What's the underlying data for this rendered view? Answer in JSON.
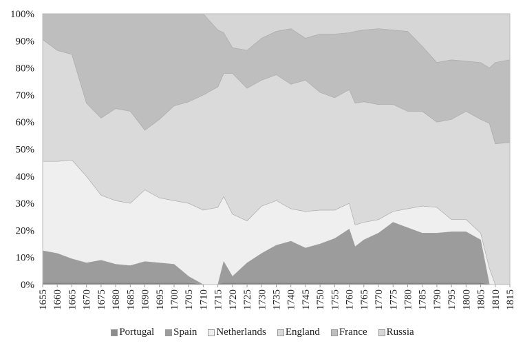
{
  "chart_data": {
    "type": "area",
    "stacked": true,
    "percent": true,
    "title": "",
    "xlabel": "",
    "ylabel": "",
    "ylim": [
      0,
      100
    ],
    "xlim": [
      1655,
      1815
    ],
    "y_ticks": [
      "0%",
      "10%",
      "20%",
      "30%",
      "40%",
      "50%",
      "60%",
      "70%",
      "80%",
      "90%",
      "100%"
    ],
    "x_ticks": [
      "1655",
      "1660",
      "1665",
      "1670",
      "1675",
      "1680",
      "1685",
      "1690",
      "1695",
      "1700",
      "1705",
      "1710",
      "1715",
      "1720",
      "1725",
      "1730",
      "1735",
      "1740",
      "1745",
      "1750",
      "1755",
      "1760",
      "1765",
      "1770",
      "1775",
      "1780",
      "1785",
      "1790",
      "1795",
      "1800",
      "1805",
      "1810",
      "1815"
    ],
    "grid": false,
    "legend_position": "bottom",
    "x": [
      1655,
      1660,
      1665,
      1670,
      1675,
      1680,
      1685,
      1690,
      1695,
      1700,
      1705,
      1710,
      1715,
      1717,
      1720,
      1725,
      1730,
      1735,
      1740,
      1745,
      1750,
      1755,
      1760,
      1762,
      1765,
      1770,
      1775,
      1780,
      1785,
      1790,
      1795,
      1800,
      1805,
      1808,
      1810,
      1815
    ],
    "series": [
      {
        "name": "Portugal",
        "color": "#8c8c8c",
        "values": [
          0.5,
          0.5,
          0.5,
          0.5,
          0.5,
          0.5,
          0.5,
          0.5,
          0.5,
          0.5,
          0.5,
          0,
          0,
          0.5,
          0.5,
          0.5,
          0.5,
          0.5,
          0.5,
          0.5,
          0.5,
          0.5,
          0.5,
          0.5,
          0.5,
          0.5,
          0.5,
          0.5,
          0.5,
          0.5,
          0.5,
          0.5,
          0.5,
          0,
          0,
          0
        ]
      },
      {
        "name": "Spain",
        "color": "#9c9c9c",
        "values": [
          12,
          11,
          9,
          7.5,
          8.5,
          7,
          6.5,
          8,
          7.5,
          7,
          2.5,
          0,
          0,
          8,
          2.5,
          7.5,
          11,
          14,
          15.5,
          13,
          14.5,
          16.5,
          20,
          13.5,
          16,
          18.5,
          22.5,
          20.5,
          18.5,
          18.5,
          19,
          19,
          16,
          0,
          0,
          0
        ]
      },
      {
        "name": "Netherlands",
        "color": "#efefef",
        "values": [
          33,
          34,
          36.5,
          32,
          24,
          23.5,
          23,
          26.5,
          24,
          23.5,
          27,
          27.5,
          28.5,
          24,
          23,
          15.5,
          17.5,
          16.5,
          12,
          13.5,
          12.5,
          10.5,
          9.5,
          8,
          6.5,
          5,
          4,
          7,
          10,
          9.5,
          4.5,
          4.5,
          2.5,
          6,
          0,
          0
        ]
      },
      {
        "name": "England",
        "color": "#dadada",
        "values": [
          45,
          41,
          39,
          27,
          28.5,
          34,
          34,
          22,
          29,
          35,
          37.5,
          42.5,
          44.5,
          45.5,
          52,
          49,
          46.5,
          46.5,
          46,
          48.5,
          43.5,
          41.5,
          42,
          45,
          44.5,
          42.5,
          39.5,
          36,
          35,
          31.5,
          37,
          40,
          42,
          53.5,
          52,
          52.5
        ]
      },
      {
        "name": "France",
        "color": "#bebebe",
        "values": [
          9.5,
          13.5,
          15,
          33,
          38.5,
          35,
          36,
          43,
          39,
          34,
          32.5,
          30,
          21,
          15,
          9.5,
          14,
          15.5,
          16,
          20.5,
          15.5,
          21.5,
          23.5,
          21,
          26.5,
          26.5,
          28,
          27.5,
          29.5,
          24,
          22,
          22,
          18.5,
          21,
          20.5,
          30,
          30.5
        ]
      },
      {
        "name": "Russia",
        "color": "#d6d6d6",
        "values": [
          0,
          0,
          0,
          0,
          0,
          0,
          0,
          0,
          0,
          0,
          0,
          0,
          6,
          7,
          12.5,
          13.5,
          9,
          6.5,
          5.5,
          9,
          7.5,
          7.5,
          7,
          6.5,
          6,
          5.5,
          6,
          6.5,
          12,
          18,
          17,
          17.5,
          18,
          20,
          18,
          17
        ]
      }
    ]
  }
}
